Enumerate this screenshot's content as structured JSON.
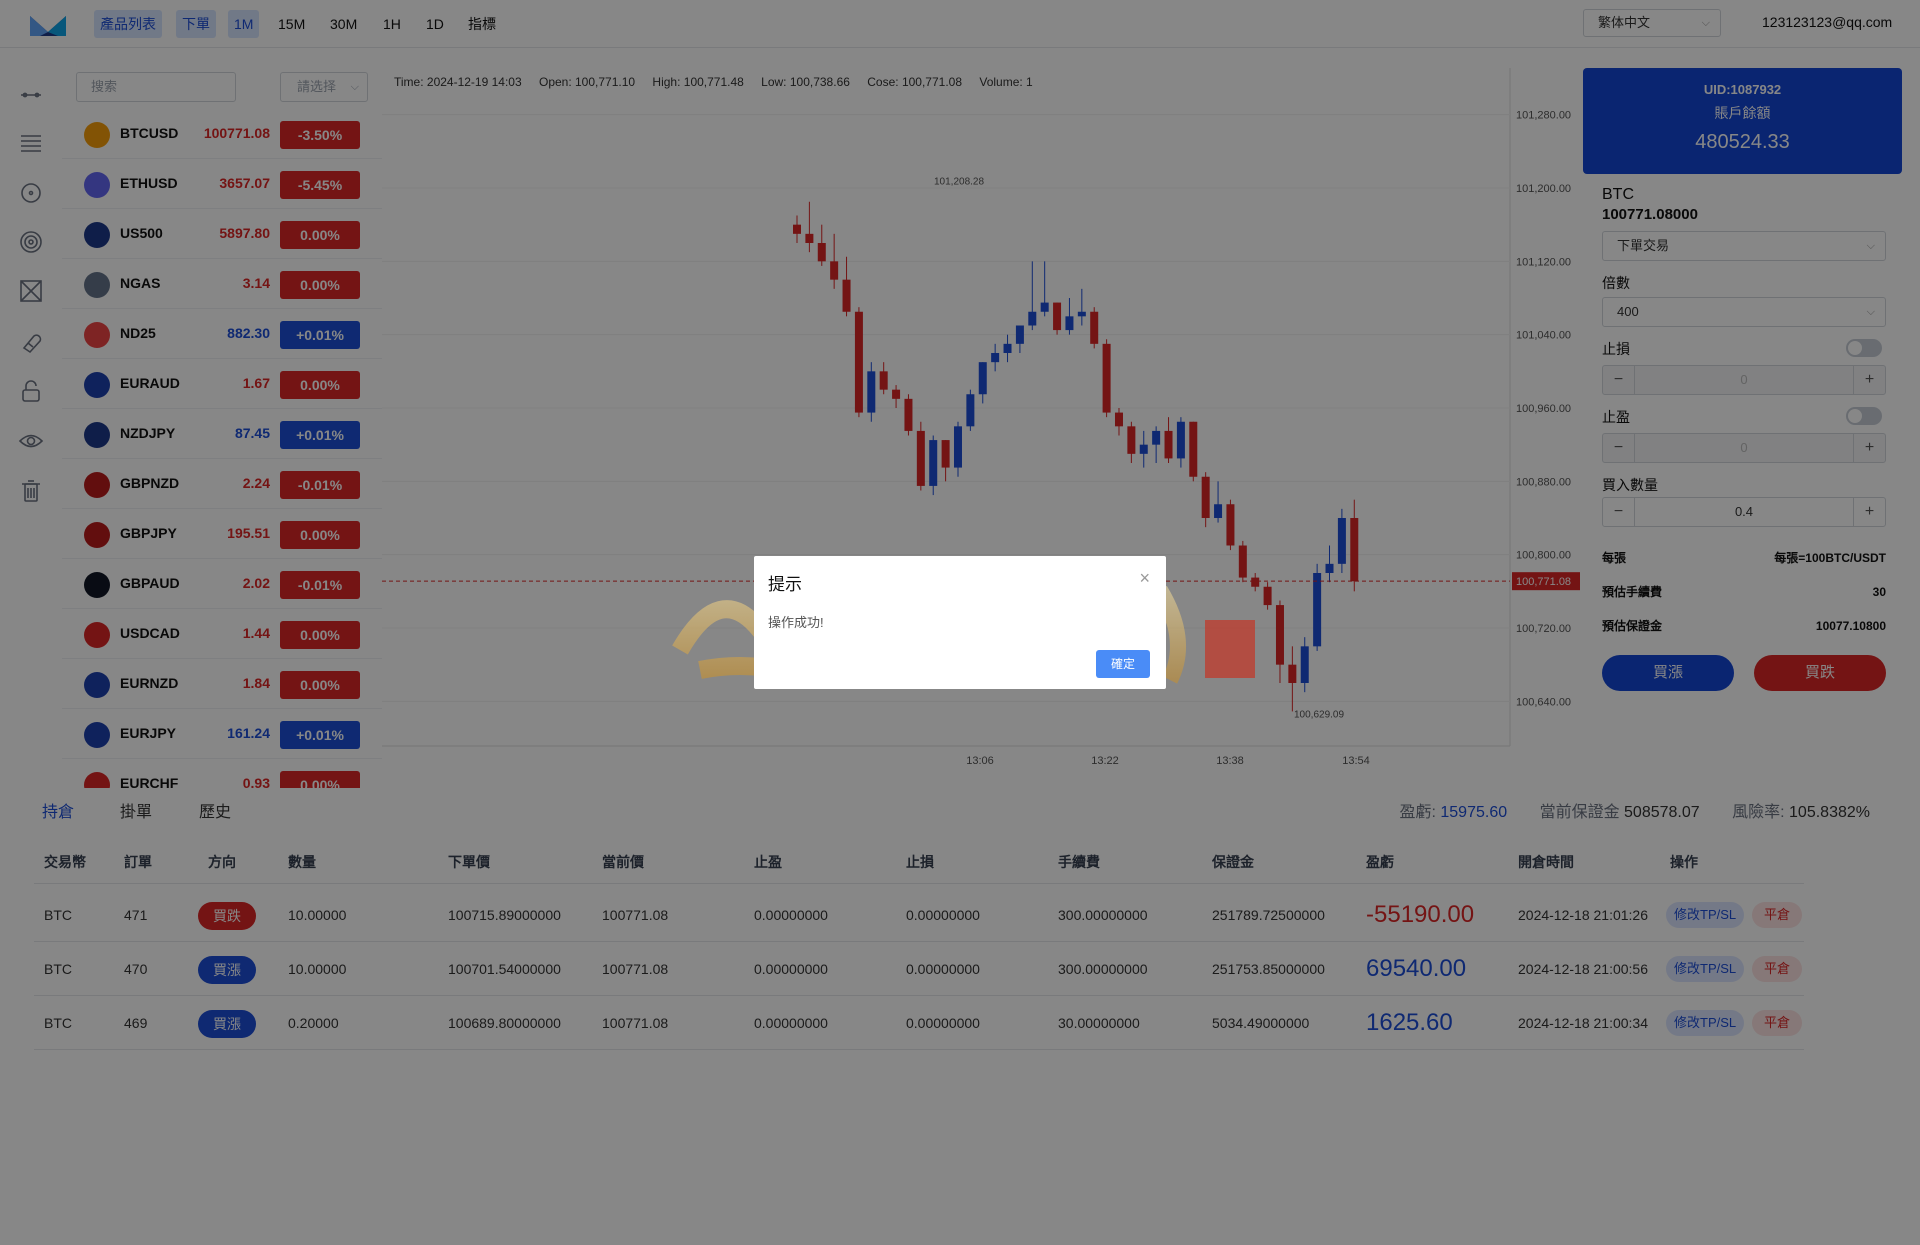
{
  "nav": {
    "items": [
      "產品列表",
      "下單",
      "1M",
      "15M",
      "30M",
      "1H",
      "1D",
      "指標"
    ],
    "language": "繁体中文",
    "user_email": "123123123@qq.com"
  },
  "tools": [
    "line-tool-icon",
    "horizontal-lines-icon",
    "circle-dot-icon",
    "target-icon",
    "crosshair-icon",
    "magnet-icon",
    "lock-icon",
    "eye-icon",
    "trash-icon"
  ],
  "product_list": {
    "search_placeholder": "搜索",
    "filter_label": "請选择",
    "items": [
      {
        "name": "BTCUSD",
        "price": "100771.08",
        "change": "-3.50%",
        "dir": "dn",
        "color": "#f59e0b"
      },
      {
        "name": "ETHUSD",
        "price": "3657.07",
        "change": "-5.45%",
        "dir": "dn",
        "color": "#6366f1"
      },
      {
        "name": "US500",
        "price": "5897.80",
        "change": "0.00%",
        "dir": "dn",
        "color": "#1e3a8a"
      },
      {
        "name": "NGAS",
        "price": "3.14",
        "change": "0.00%",
        "dir": "dn",
        "color": "#64748b"
      },
      {
        "name": "ND25",
        "price": "882.30",
        "change": "+0.01%",
        "dir": "up",
        "color": "#ef4444"
      },
      {
        "name": "EURAUD",
        "price": "1.67",
        "change": "0.00%",
        "dir": "dn",
        "color": "#1e40af"
      },
      {
        "name": "NZDJPY",
        "price": "87.45",
        "change": "+0.01%",
        "dir": "up",
        "color": "#1e3a8a"
      },
      {
        "name": "GBPNZD",
        "price": "2.24",
        "change": "-0.01%",
        "dir": "dn",
        "color": "#b91c1c"
      },
      {
        "name": "GBPJPY",
        "price": "195.51",
        "change": "0.00%",
        "dir": "dn",
        "color": "#b91c1c"
      },
      {
        "name": "GBPAUD",
        "price": "2.02",
        "change": "-0.01%",
        "dir": "dn",
        "color": "#111827"
      },
      {
        "name": "USDCAD",
        "price": "1.44",
        "change": "0.00%",
        "dir": "dn",
        "color": "#dc2626"
      },
      {
        "name": "EURNZD",
        "price": "1.84",
        "change": "0.00%",
        "dir": "dn",
        "color": "#1e40af"
      },
      {
        "name": "EURJPY",
        "price": "161.24",
        "change": "+0.01%",
        "dir": "up",
        "color": "#1e40af"
      },
      {
        "name": "EURCHF",
        "price": "0.93",
        "change": "0.00%",
        "dir": "dn",
        "color": "#dc2626"
      }
    ]
  },
  "ohlc_bar": {
    "time": "Time: 2024-12-19 14:03",
    "open": "Open: 100,771.10",
    "high": "High: 100,771.48",
    "low": "Low: 100,738.66",
    "close": "Cose: 100,771.08",
    "volume": "Volume: 1"
  },
  "chart_data": {
    "type": "candlestick",
    "y_ticks": [
      "101,280.00",
      "101,200.00",
      "101,120.00",
      "101,040.00",
      "100,960.00",
      "100,880.00",
      "100,800.00",
      "100,720.00",
      "100,640.00"
    ],
    "ylim": [
      100600,
      101320
    ],
    "x_ticks": [
      "13:06",
      "13:22",
      "13:38",
      "13:54"
    ],
    "current_price_label": "100,771.08",
    "current_price": 100771.08,
    "max_label": "101,208.28",
    "max_value": 101208.28,
    "min_label": "100,629.09",
    "min_value": 100629.09,
    "up_color": "#1d4ed8",
    "down_color": "#dc2626",
    "candles": [
      [
        101160,
        101170,
        101140,
        101150
      ],
      [
        101150,
        101185,
        101130,
        101140
      ],
      [
        101140,
        101160,
        101115,
        101120
      ],
      [
        101120,
        101150,
        101090,
        101100
      ],
      [
        101100,
        101125,
        101060,
        101065
      ],
      [
        101065,
        101070,
        100950,
        100955
      ],
      [
        100955,
        101010,
        100945,
        101000
      ],
      [
        101000,
        101010,
        100975,
        100980
      ],
      [
        100980,
        100985,
        100960,
        100970
      ],
      [
        100970,
        100975,
        100930,
        100935
      ],
      [
        100935,
        100945,
        100870,
        100875
      ],
      [
        100875,
        100930,
        100865,
        100925
      ],
      [
        100925,
        100925,
        100880,
        100895
      ],
      [
        100895,
        100945,
        100885,
        100940
      ],
      [
        100940,
        100980,
        100935,
        100975
      ],
      [
        100975,
        101010,
        100965,
        101010
      ],
      [
        101010,
        101030,
        101000,
        101020
      ],
      [
        101020,
        101040,
        101010,
        101030
      ],
      [
        101030,
        101050,
        101020,
        101050
      ],
      [
        101050,
        101120,
        101045,
        101065
      ],
      [
        101065,
        101120,
        101060,
        101075
      ],
      [
        101075,
        101075,
        101040,
        101045
      ],
      [
        101045,
        101080,
        101040,
        101060
      ],
      [
        101060,
        101090,
        101050,
        101065
      ],
      [
        101065,
        101070,
        101025,
        101030
      ],
      [
        101030,
        101035,
        100950,
        100955
      ],
      [
        100955,
        100960,
        100930,
        100940
      ],
      [
        100940,
        100945,
        100900,
        100910
      ],
      [
        100910,
        100935,
        100895,
        100920
      ],
      [
        100920,
        100940,
        100900,
        100935
      ],
      [
        100935,
        100950,
        100900,
        100905
      ],
      [
        100905,
        100950,
        100895,
        100945
      ],
      [
        100945,
        100945,
        100880,
        100885
      ],
      [
        100885,
        100890,
        100830,
        100840
      ],
      [
        100840,
        100880,
        100835,
        100855
      ],
      [
        100855,
        100860,
        100805,
        100810
      ],
      [
        100810,
        100815,
        100770,
        100775
      ],
      [
        100775,
        100780,
        100760,
        100765
      ],
      [
        100765,
        100770,
        100740,
        100745
      ],
      [
        100745,
        100750,
        100660,
        100680
      ],
      [
        100680,
        100700,
        100629,
        100660
      ],
      [
        100660,
        100710,
        100650,
        100700
      ],
      [
        100700,
        100790,
        100695,
        100780
      ],
      [
        100780,
        100810,
        100770,
        100790
      ],
      [
        100790,
        100850,
        100780,
        100840
      ],
      [
        100840,
        100860,
        100760,
        100771
      ]
    ],
    "x_range": [
      13.0,
      14.25
    ],
    "candle_x_start": 797,
    "candle_spacing": 6.45
  },
  "account": {
    "uid": "UID:1087932",
    "balance_label": "賬戶餘額",
    "balance": "480524.33"
  },
  "order_form": {
    "symbol": "BTC",
    "symbol_price": "100771.08000",
    "order_type": "下單交易",
    "leverage_label": "倍數",
    "leverage": "400",
    "stop_loss_label": "止損",
    "stop_loss_value": "0",
    "take_profit_label": "止盈",
    "take_profit_value": "0",
    "quantity_label": "買入數量",
    "quantity": "0.4",
    "per_lot_label": "每張",
    "per_lot_value": "每張=100BTC/USDT",
    "fee_label": "預估手續費",
    "fee_value": "30",
    "margin_label": "預估保證金",
    "margin_value": "10077.10800",
    "buy_label": "買漲",
    "sell_label": "買跌"
  },
  "positions": {
    "tabs": [
      "持倉",
      "掛單",
      "歷史"
    ],
    "pnl_label": "盈虧:",
    "pnl_value": "15975.60",
    "margin_label": "當前保證金",
    "margin_value": "508578.07",
    "risk_label": "風險率:",
    "risk_value": "105.8382%",
    "columns": [
      "交易幣",
      "訂單",
      "方向",
      "數量",
      "下單價",
      "當前價",
      "止盈",
      "止損",
      "手續費",
      "保證金",
      "盈虧",
      "開倉時間",
      "操作"
    ],
    "rows": [
      {
        "coin": "BTC",
        "order": "471",
        "direction": "買跌",
        "dir": "dn",
        "qty": "10.00000",
        "open_price": "100715.89000000",
        "current": "100771.08",
        "tp": "0.00000000",
        "sl": "0.00000000",
        "fee": "300.00000000",
        "margin": "251789.72500000",
        "pnl": "-55190.00",
        "time": "2024-12-18 21:01:26",
        "modify": "修改TP/SL",
        "close": "平倉"
      },
      {
        "coin": "BTC",
        "order": "470",
        "direction": "買漲",
        "dir": "up",
        "qty": "10.00000",
        "open_price": "100701.54000000",
        "current": "100771.08",
        "tp": "0.00000000",
        "sl": "0.00000000",
        "fee": "300.00000000",
        "margin": "251753.85000000",
        "pnl": "69540.00",
        "time": "2024-12-18 21:00:56",
        "modify": "修改TP/SL",
        "close": "平倉"
      },
      {
        "coin": "BTC",
        "order": "469",
        "direction": "買漲",
        "dir": "up",
        "qty": "0.20000",
        "open_price": "100689.80000000",
        "current": "100771.08",
        "tp": "0.00000000",
        "sl": "0.00000000",
        "fee": "30.00000000",
        "margin": "5034.49000000",
        "pnl": "1625.60",
        "time": "2024-12-18 21:00:34",
        "modify": "修改TP/SL",
        "close": "平倉"
      }
    ]
  },
  "dialog": {
    "title": "提示",
    "message": "操作成功!",
    "ok_label": "確定",
    "close_icon": "×"
  }
}
